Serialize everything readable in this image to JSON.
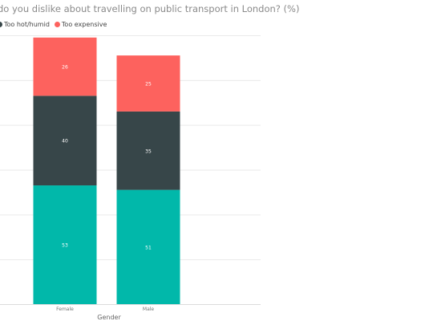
{
  "title": "do you dislike about travelling on public transport in London? (%)",
  "legend": [
    {
      "label": "Too hot/humid",
      "color": "#374649"
    },
    {
      "label": "Too expensive",
      "color": "#fd625e"
    }
  ],
  "chart_data": {
    "type": "bar",
    "stacked": true,
    "categories": [
      "Female",
      "Male"
    ],
    "series": [
      {
        "values": [
          53,
          51
        ],
        "color": "#01b8aa"
      },
      {
        "name": "Too hot/humid",
        "values": [
          40,
          35
        ],
        "color": "#374649"
      },
      {
        "name": "Too expensive",
        "values": [
          26,
          25
        ],
        "color": "#fd625e"
      }
    ],
    "xlabel": "Gender",
    "ylabel": "",
    "ylim": [
      0,
      120
    ],
    "grid": true,
    "legend_position": "top-left"
  }
}
